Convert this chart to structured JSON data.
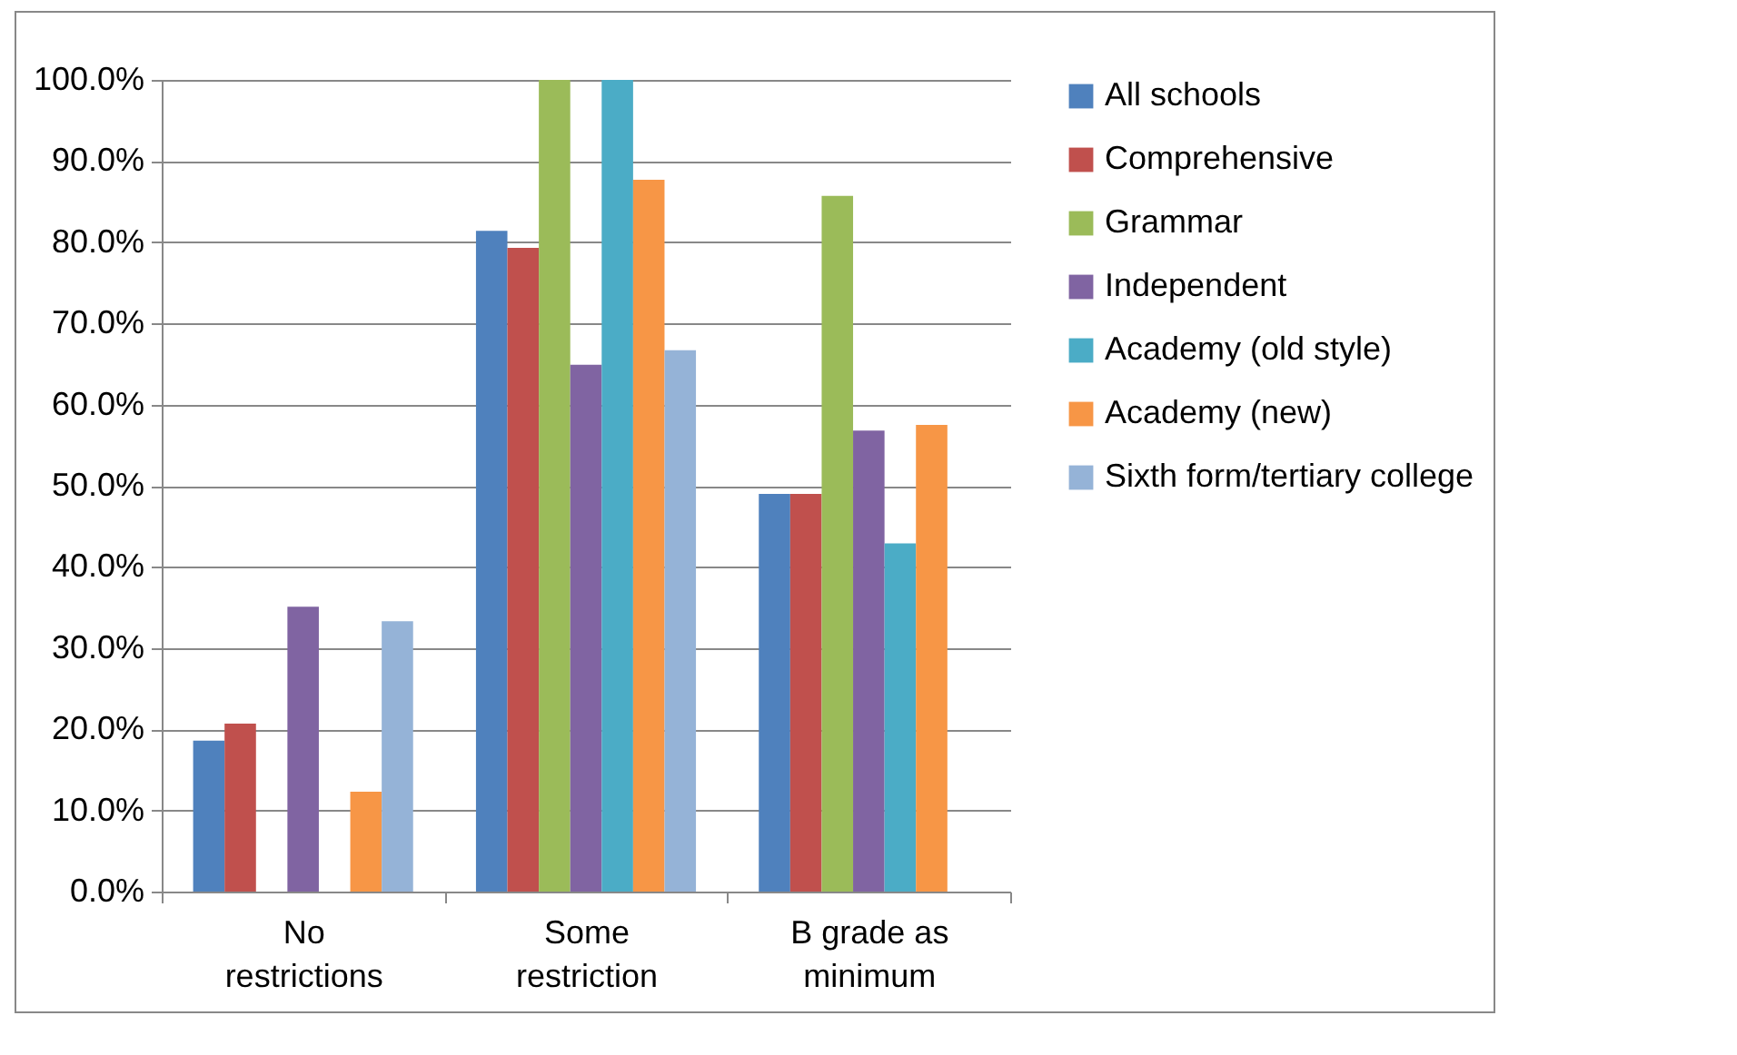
{
  "chart_data": {
    "type": "bar",
    "categories": [
      "No restrictions",
      "Some restriction",
      "B grade as minimum"
    ],
    "series": [
      {
        "name": "All schools",
        "color": "#4f81bd",
        "values": [
          18.6,
          81.4,
          49.0
        ]
      },
      {
        "name": "Comprehensive",
        "color": "#c0504d",
        "values": [
          20.7,
          79.3,
          49.0
        ]
      },
      {
        "name": "Grammar",
        "color": "#9bbb59",
        "values": [
          0,
          100,
          85.7
        ]
      },
      {
        "name": "Independent",
        "color": "#8064a2",
        "values": [
          35.1,
          64.9,
          56.8
        ]
      },
      {
        "name": "Academy (old style)",
        "color": "#4bacc6",
        "values": [
          0,
          100,
          42.9
        ]
      },
      {
        "name": "Academy (new)",
        "color": "#f79646",
        "values": [
          12.3,
          87.7,
          57.5
        ]
      },
      {
        "name": "Sixth form/tertiary college",
        "color": "#95b3d7",
        "values": [
          33.3,
          66.7,
          0
        ]
      }
    ],
    "ylim": [
      0,
      100
    ],
    "yticks": [
      {
        "value": 0,
        "label": "0.0%"
      },
      {
        "value": 10,
        "label": "10.0%"
      },
      {
        "value": 20,
        "label": "20.0%"
      },
      {
        "value": 30,
        "label": "30.0%"
      },
      {
        "value": 40,
        "label": "40.0%"
      },
      {
        "value": 50,
        "label": "50.0%"
      },
      {
        "value": 60,
        "label": "60.0%"
      },
      {
        "value": 70,
        "label": "70.0%"
      },
      {
        "value": 80,
        "label": "80.0%"
      },
      {
        "value": 90,
        "label": "90.0%"
      },
      {
        "value": 100,
        "label": "100.0%"
      }
    ],
    "grid": "y",
    "legend": "right"
  }
}
